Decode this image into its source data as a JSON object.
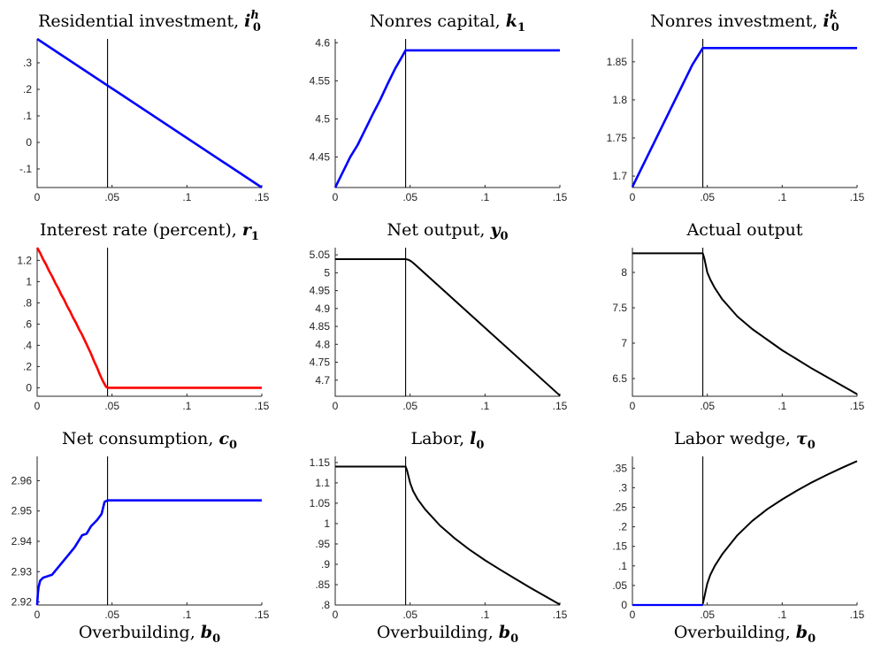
{
  "chart_data": [
    {
      "type": "line",
      "title": "Residential investment, ",
      "title_var": "i",
      "title_sub": "0",
      "title_sup": "h",
      "xlabel": "",
      "xlim": [
        0,
        0.15
      ],
      "ylim": [
        -0.17,
        0.39
      ],
      "xticks": [
        0,
        0.05,
        0.1,
        0.15
      ],
      "yticks": [
        -0.1,
        0,
        0.1,
        0.2,
        0.3
      ],
      "vline": 0.047,
      "series": [
        {
          "color": "#0000ff",
          "width": 2.6,
          "x": [
            0,
            0.15
          ],
          "y": [
            0.39,
            -0.17
          ]
        }
      ]
    },
    {
      "type": "line",
      "title": "Nonres capital, ",
      "title_var": "k",
      "title_sub": "1",
      "title_sup": "",
      "xlabel": "",
      "xlim": [
        0,
        0.15
      ],
      "ylim": [
        4.41,
        4.605
      ],
      "xticks": [
        0,
        0.05,
        0.1,
        0.15
      ],
      "yticks": [
        4.45,
        4.5,
        4.55,
        4.6
      ],
      "vline": 0.047,
      "series": [
        {
          "color": "#0000ff",
          "width": 2.6,
          "x": [
            0,
            0.005,
            0.01,
            0.015,
            0.02,
            0.025,
            0.03,
            0.035,
            0.04,
            0.047,
            0.15
          ],
          "y": [
            4.41,
            4.43,
            4.45,
            4.466,
            4.486,
            4.506,
            4.525,
            4.546,
            4.566,
            4.59,
            4.59
          ]
        }
      ]
    },
    {
      "type": "line",
      "title": "Nonres investment, ",
      "title_var": "i",
      "title_sub": "0",
      "title_sup": "k",
      "xlabel": "",
      "xlim": [
        0,
        0.15
      ],
      "ylim": [
        1.685,
        1.88
      ],
      "xticks": [
        0,
        0.05,
        0.1,
        0.15
      ],
      "yticks": [
        1.7,
        1.75,
        1.8,
        1.85
      ],
      "vline": 0.047,
      "series": [
        {
          "color": "#0000ff",
          "width": 2.6,
          "x": [
            0,
            0.005,
            0.01,
            0.015,
            0.02,
            0.025,
            0.03,
            0.035,
            0.04,
            0.047,
            0.15
          ],
          "y": [
            1.686,
            1.706,
            1.726,
            1.746,
            1.766,
            1.786,
            1.806,
            1.826,
            1.846,
            1.868,
            1.868
          ]
        }
      ]
    },
    {
      "type": "line",
      "title": "Interest rate (percent), ",
      "title_var": "r",
      "title_sub": "1",
      "title_sup": "",
      "xlabel": "",
      "xlim": [
        0,
        0.15
      ],
      "ylim": [
        -0.08,
        1.32
      ],
      "xticks": [
        0,
        0.05,
        0.1,
        0.15
      ],
      "yticks": [
        0,
        0.2,
        0.4,
        0.6,
        0.8,
        1,
        1.2
      ],
      "vline": 0.047,
      "series": [
        {
          "color": "#ff0000",
          "width": 2.6,
          "x": [
            0,
            0.002,
            0.004,
            0.006,
            0.008,
            0.01,
            0.012,
            0.014,
            0.016,
            0.018,
            0.02,
            0.022,
            0.024,
            0.026,
            0.028,
            0.03,
            0.032,
            0.034,
            0.036,
            0.038,
            0.04,
            0.042,
            0.044,
            0.046,
            0.047,
            0.15
          ],
          "y": [
            1.32,
            1.27,
            1.21,
            1.16,
            1.1,
            1.05,
            0.99,
            0.94,
            0.88,
            0.83,
            0.77,
            0.72,
            0.66,
            0.61,
            0.55,
            0.5,
            0.44,
            0.38,
            0.32,
            0.25,
            0.19,
            0.12,
            0.06,
            0.01,
            0,
            0
          ]
        }
      ]
    },
    {
      "type": "line",
      "title": "Net output, ",
      "title_var": "y",
      "title_sub": "0",
      "title_sup": "",
      "xlabel": "",
      "xlim": [
        0,
        0.15
      ],
      "ylim": [
        4.655,
        5.07
      ],
      "xticks": [
        0,
        0.05,
        0.1,
        0.15
      ],
      "yticks": [
        4.7,
        4.75,
        4.8,
        4.85,
        4.9,
        4.95,
        5,
        5.05
      ],
      "vline": 0.047,
      "series": [
        {
          "color": "#000000",
          "width": 2.0,
          "x": [
            0,
            0.047,
            0.049,
            0.051,
            0.053,
            0.15
          ],
          "y": [
            5.038,
            5.038,
            5.036,
            5.031,
            5.024,
            4.657
          ]
        }
      ]
    },
    {
      "type": "line",
      "title": "Actual output",
      "title_var": "",
      "title_sub": "",
      "title_sup": "",
      "xlabel": "",
      "xlim": [
        0,
        0.15
      ],
      "ylim": [
        6.25,
        8.35
      ],
      "xticks": [
        0,
        0.05,
        0.1,
        0.15
      ],
      "yticks": [
        6.5,
        7,
        7.5,
        8
      ],
      "vline": 0.047,
      "series": [
        {
          "color": "#000000",
          "width": 2.0,
          "x": [
            0,
            0.047,
            0.048,
            0.049,
            0.05,
            0.052,
            0.055,
            0.06,
            0.07,
            0.08,
            0.09,
            0.1,
            0.11,
            0.12,
            0.13,
            0.14,
            0.15
          ],
          "y": [
            8.27,
            8.27,
            8.2,
            8.1,
            8.0,
            7.9,
            7.78,
            7.62,
            7.38,
            7.2,
            7.05,
            6.9,
            6.77,
            6.64,
            6.52,
            6.4,
            6.28
          ]
        }
      ]
    },
    {
      "type": "line",
      "title": "Net consumption, ",
      "title_var": "c",
      "title_sub": "0",
      "title_sup": "",
      "xlabel": "Overbuilding, ",
      "xlabel_var": "b",
      "xlabel_sub": "0",
      "xlim": [
        0,
        0.15
      ],
      "ylim": [
        2.919,
        2.968
      ],
      "xticks": [
        0,
        0.05,
        0.1,
        0.15
      ],
      "yticks": [
        2.92,
        2.93,
        2.94,
        2.95,
        2.96
      ],
      "vline": 0.047,
      "series": [
        {
          "color": "#0000ff",
          "width": 2.6,
          "x": [
            0,
            0.0005,
            0.001,
            0.002,
            0.004,
            0.007,
            0.01,
            0.015,
            0.02,
            0.025,
            0.03,
            0.033,
            0.036,
            0.04,
            0.043,
            0.045,
            0.047,
            0.15
          ],
          "y": [
            2.919,
            2.923,
            2.925,
            2.927,
            2.928,
            2.9285,
            2.929,
            2.932,
            2.935,
            2.938,
            2.942,
            2.9425,
            2.945,
            2.947,
            2.949,
            2.953,
            2.9535,
            2.9535
          ]
        }
      ]
    },
    {
      "type": "line",
      "title": "Labor, ",
      "title_var": "l",
      "title_sub": "0",
      "title_sup": "",
      "xlabel": "Overbuilding, ",
      "xlabel_var": "b",
      "xlabel_sub": "0",
      "xlim": [
        0,
        0.15
      ],
      "ylim": [
        0.8,
        1.165
      ],
      "xticks": [
        0,
        0.05,
        0.1,
        0.15
      ],
      "yticks": [
        0.8,
        0.85,
        0.9,
        0.95,
        1,
        1.05,
        1.1,
        1.15
      ],
      "vline": 0.047,
      "series": [
        {
          "color": "#000000",
          "width": 2.0,
          "x": [
            0,
            0.047,
            0.048,
            0.049,
            0.05,
            0.052,
            0.055,
            0.06,
            0.07,
            0.08,
            0.09,
            0.1,
            0.11,
            0.12,
            0.13,
            0.14,
            0.15
          ],
          "y": [
            1.14,
            1.14,
            1.13,
            1.115,
            1.1,
            1.08,
            1.06,
            1.035,
            0.995,
            0.963,
            0.935,
            0.91,
            0.887,
            0.865,
            0.843,
            0.822,
            0.801
          ]
        }
      ]
    },
    {
      "type": "line",
      "title": "Labor wedge, ",
      "title_var": "τ",
      "title_sub": "0",
      "title_sup": "",
      "xlabel": "Overbuilding, ",
      "xlabel_var": "b",
      "xlabel_sub": "0",
      "xlim": [
        0,
        0.15
      ],
      "ylim": [
        0,
        0.38
      ],
      "xticks": [
        0,
        0.05,
        0.1,
        0.15
      ],
      "yticks": [
        0,
        0.05,
        0.1,
        0.15,
        0.2,
        0.25,
        0.3,
        0.35
      ],
      "vline": 0.047,
      "series": [
        {
          "color": "#0000ff",
          "width": 2.2,
          "x": [
            0,
            0.047
          ],
          "y": [
            0,
            0
          ]
        },
        {
          "color": "#000000",
          "width": 2.0,
          "x": [
            0.047,
            0.048,
            0.049,
            0.05,
            0.052,
            0.055,
            0.06,
            0.07,
            0.08,
            0.09,
            0.1,
            0.11,
            0.12,
            0.13,
            0.14,
            0.15
          ],
          "y": [
            0.003,
            0.02,
            0.038,
            0.055,
            0.077,
            0.1,
            0.13,
            0.178,
            0.215,
            0.245,
            0.27,
            0.293,
            0.314,
            0.333,
            0.351,
            0.368
          ]
        }
      ]
    }
  ]
}
